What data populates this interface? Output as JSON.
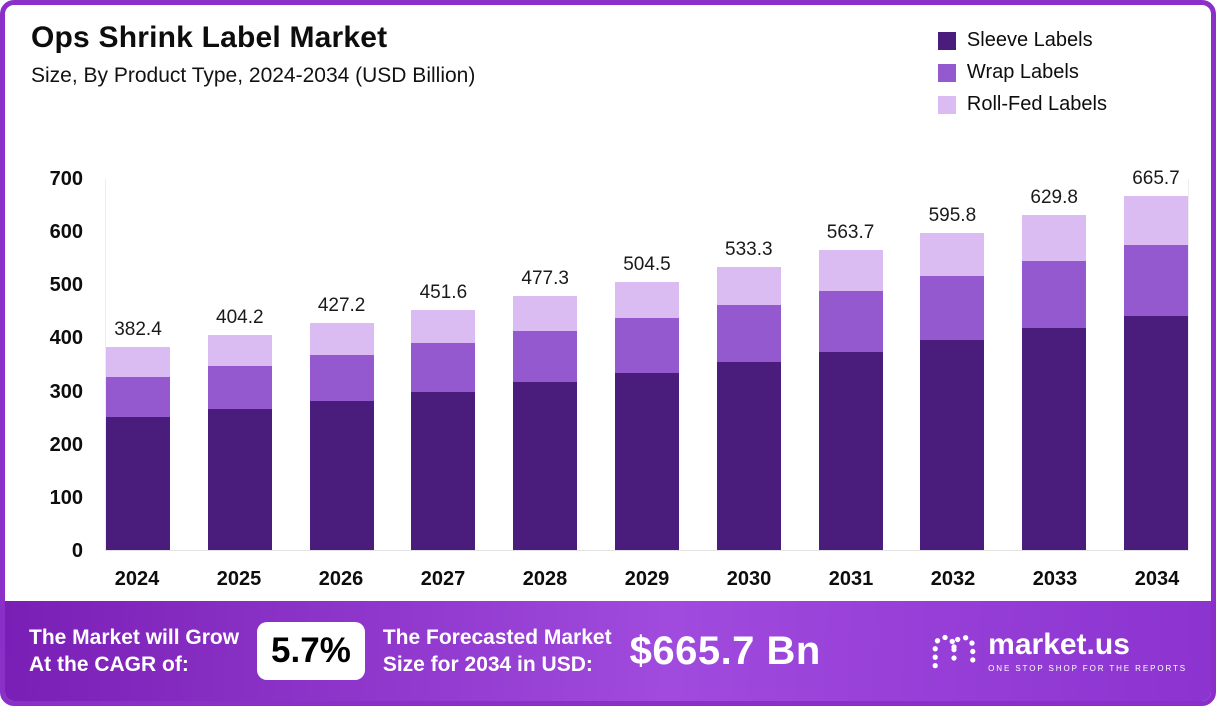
{
  "header": {
    "title": "Ops Shrink Label Market",
    "subtitle": "Size, By Product Type, 2024-2034 (USD Billion)"
  },
  "chart_data": {
    "type": "bar",
    "stacked": true,
    "title": "Ops Shrink Label Market Size, By Product Type, 2024-2034 (USD Billion)",
    "categories": [
      "2024",
      "2025",
      "2026",
      "2027",
      "2028",
      "2029",
      "2030",
      "2031",
      "2032",
      "2033",
      "2034"
    ],
    "series": [
      {
        "name": "Sleeve Labels",
        "color": "#4a1d7c",
        "values": [
          250,
          265,
          281,
          298,
          316,
          334,
          353,
          373,
          395,
          418,
          441
        ]
      },
      {
        "name": "Wrap Labels",
        "color": "#9458cf",
        "values": [
          76,
          81,
          86,
          91,
          96,
          102,
          108,
          115,
          120,
          126,
          133
        ]
      },
      {
        "name": "Roll-Fed Labels",
        "color": "#dbbcf2",
        "values": [
          56.4,
          58.2,
          60.2,
          62.6,
          65.3,
          68.5,
          72.3,
          75.7,
          80.8,
          85.8,
          91.7
        ]
      }
    ],
    "totals": [
      382.4,
      404.2,
      427.2,
      451.6,
      477.3,
      504.5,
      533.3,
      563.7,
      595.8,
      629.8,
      665.7
    ],
    "xlabel": "",
    "ylabel": "",
    "ylim": [
      0,
      700
    ],
    "yticks": [
      0,
      100,
      200,
      300,
      400,
      500,
      600,
      700
    ],
    "grid": false,
    "legend_position": "top-right"
  },
  "footer": {
    "cagr_label_line1": "The Market will Grow",
    "cagr_label_line2": "At the CAGR of:",
    "cagr_value": "5.7%",
    "forecast_label_line1": "The Forecasted Market",
    "forecast_label_line2": "Size for 2034 in USD:",
    "forecast_value": "$665.7 Bn",
    "brand_name": "market.us",
    "brand_tagline": "ONE STOP SHOP FOR THE REPORTS"
  },
  "colors": {
    "frame_border": "#8b2fc9",
    "footer_gradient_start": "#7a1fb5",
    "footer_gradient_end": "#8c33d0",
    "sleeve": "#4a1d7c",
    "wrap": "#9458cf",
    "roll_fed": "#dbbcf2"
  }
}
